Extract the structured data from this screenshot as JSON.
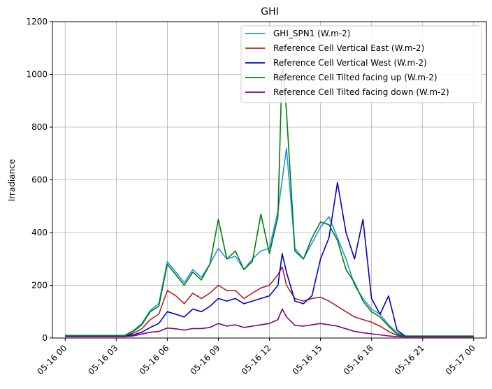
{
  "chart_data": {
    "type": "line",
    "title": "GHI",
    "xlabel": "",
    "ylabel": "Irradiance",
    "xlim": [
      "2024-05-15T23:15",
      "2024-05-17T00:45"
    ],
    "ylim": [
      0,
      1200
    ],
    "grid": true,
    "legend_position": "top-right",
    "xtick_labels": [
      "05-16 00",
      "05-16 03",
      "05-16 06",
      "05-16 09",
      "05-16 12",
      "05-16 15",
      "05-16 18",
      "05-16 21",
      "05-17 00"
    ],
    "xtick_hours": [
      0,
      3,
      6,
      9,
      12,
      15,
      18,
      21,
      24
    ],
    "yticks": [
      0,
      200,
      400,
      600,
      800,
      1000,
      1200
    ],
    "x_hours": [
      0,
      3.5,
      4,
      4.5,
      5,
      5.5,
      6,
      6.5,
      7,
      7.5,
      8,
      8.5,
      9,
      9.5,
      10,
      10.5,
      11,
      11.5,
      12,
      12.5,
      12.75,
      13,
      13.5,
      14,
      14.5,
      15,
      15.5,
      16,
      16.5,
      17,
      17.5,
      18,
      18.5,
      19,
      19.5,
      20,
      20.5,
      21,
      22,
      23,
      24
    ],
    "series": [
      {
        "name": "GHI_SPN1 (W.m-2)",
        "color": "#1e90ff",
        "values": [
          10,
          10,
          28,
          55,
          105,
          130,
          290,
          250,
          210,
          260,
          230,
          280,
          340,
          300,
          310,
          260,
          300,
          330,
          340,
          480,
          600,
          720,
          340,
          300,
          360,
          420,
          460,
          380,
          300,
          200,
          150,
          110,
          90,
          50,
          20,
          8,
          8,
          8,
          8,
          8,
          8
        ]
      },
      {
        "name": "Reference Cell Vertical East (W.m-2)",
        "color": "#b22222",
        "values": [
          8,
          8,
          18,
          35,
          70,
          90,
          180,
          160,
          130,
          170,
          150,
          170,
          200,
          180,
          180,
          150,
          170,
          190,
          200,
          240,
          270,
          200,
          150,
          140,
          150,
          155,
          140,
          120,
          100,
          80,
          70,
          60,
          45,
          25,
          10,
          6,
          6,
          6,
          6,
          6,
          6
        ]
      },
      {
        "name": "Reference Cell Vertical West (W.m-2)",
        "color": "#0000cd",
        "values": [
          8,
          8,
          12,
          22,
          40,
          55,
          100,
          90,
          80,
          110,
          100,
          120,
          150,
          140,
          150,
          130,
          140,
          150,
          160,
          200,
          320,
          250,
          140,
          130,
          160,
          300,
          380,
          590,
          400,
          300,
          450,
          150,
          90,
          160,
          30,
          6,
          6,
          6,
          6,
          6,
          6
        ]
      },
      {
        "name": "Reference Cell Tilted facing up (W.m-2)",
        "color": "#008000",
        "values": [
          8,
          8,
          25,
          50,
          100,
          120,
          280,
          240,
          200,
          250,
          220,
          280,
          450,
          300,
          330,
          260,
          290,
          470,
          320,
          460,
          1050,
          860,
          330,
          300,
          380,
          440,
          430,
          370,
          260,
          210,
          140,
          100,
          80,
          45,
          15,
          6,
          6,
          6,
          6,
          6,
          6
        ]
      },
      {
        "name": "Reference Cell Tilted facing down (W.m-2)",
        "color": "#800080",
        "values": [
          5,
          5,
          8,
          15,
          22,
          25,
          38,
          35,
          30,
          36,
          36,
          40,
          55,
          45,
          50,
          40,
          45,
          50,
          55,
          70,
          110,
          80,
          48,
          45,
          50,
          55,
          50,
          45,
          35,
          25,
          20,
          16,
          12,
          8,
          5,
          4,
          4,
          4,
          4,
          4,
          4
        ]
      }
    ]
  }
}
